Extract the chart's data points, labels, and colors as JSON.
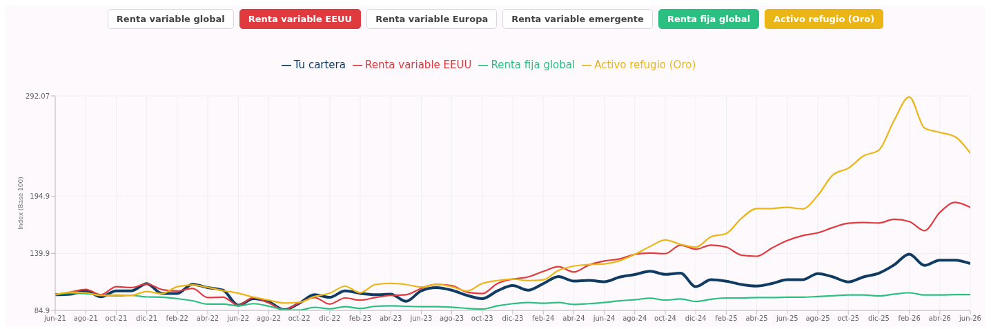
{
  "chart_data": {
    "type": "line",
    "ylabel": "Index (Base 100)",
    "annotations": [
      "Renta variable global",
      "Renta variable EEUU",
      "Renta variable Europa",
      "Renta variable emergente",
      "Renta fija global",
      "Activo refugio (Oro)"
    ],
    "categories": [
      "jun-21",
      null,
      "ago-21",
      null,
      "oct-21",
      null,
      "dic-21",
      null,
      "feb-22",
      null,
      "abr-22",
      null,
      "jun-22",
      null,
      "ago-22",
      null,
      "oct-22",
      null,
      "dic-22",
      null,
      "feb-23",
      null,
      "abr-23",
      null,
      "jun-23",
      null,
      "ago-23",
      null,
      "oct-23",
      null,
      "dic-23",
      null,
      "feb-24",
      null,
      "abr-24",
      null,
      "jun-24",
      null,
      "ago-24",
      null,
      "oct-24",
      null,
      "dic-24",
      null,
      "feb-25",
      null,
      "abr-25",
      null,
      "jun-25",
      null,
      "ago-25",
      null,
      "oct-25",
      null,
      "dic-25",
      null,
      "feb-26",
      null,
      "abr-26",
      null,
      "jun-26"
    ],
    "series": [
      {
        "name": "Tu cartera",
        "color": "#103c63",
        "values": [
          100,
          100.6,
          103.8,
          98.1,
          103.8,
          103.8,
          110.7,
          101.3,
          101.3,
          110.1,
          106.9,
          104.4,
          89.9,
          96.2,
          93.1,
          85.5,
          91.8,
          100,
          97.5,
          103.8,
          101.3,
          100,
          100.6,
          93.7,
          103.8,
          106.9,
          104.4,
          99.4,
          96.2,
          103.8,
          108.8,
          104.4,
          110.7,
          117.6,
          113.2,
          113.9,
          112.6,
          117,
          119.5,
          122.7,
          119.7,
          120.8,
          107.8,
          114.5,
          113,
          109.9,
          108.4,
          110.9,
          114.5,
          114.5,
          120.4,
          117.2,
          112.4,
          117.2,
          120.8,
          128.8,
          139.2,
          128.3,
          133.4,
          133.4,
          130.2
        ]
      },
      {
        "name": "Renta variable EEUU",
        "color": "#e0393e",
        "values": [
          100,
          102.5,
          105.2,
          100,
          107.8,
          106.9,
          110.5,
          105,
          103.6,
          106.1,
          97.3,
          97.7,
          89.9,
          97.3,
          92,
          85.5,
          92,
          97.3,
          91,
          96.9,
          94.8,
          97.3,
          99.4,
          100,
          106.1,
          109.9,
          108.8,
          102.5,
          101.1,
          110.9,
          115.1,
          117.2,
          122.5,
          127.1,
          121.9,
          128.8,
          132.6,
          134.6,
          139,
          140.3,
          139.7,
          148,
          143.9,
          148,
          146,
          138.2,
          137.2,
          145.2,
          152.3,
          157.1,
          159.8,
          164.9,
          169.1,
          169.7,
          169.3,
          172.9,
          170.7,
          161.9,
          179.5,
          189.2,
          184.4
        ]
      },
      {
        "name": "Renta fija global",
        "color": "#2bbf82",
        "values": [
          100,
          101.5,
          101.1,
          99.4,
          99,
          99.4,
          97.9,
          97.7,
          96.2,
          94.2,
          91,
          91,
          89.3,
          91.4,
          88.9,
          85.7,
          85.1,
          87.9,
          86.4,
          88.5,
          86.8,
          88.9,
          89.3,
          88.9,
          88.5,
          88.5,
          88,
          86.8,
          86.2,
          89.3,
          91.4,
          92.5,
          91.8,
          92.5,
          90.6,
          91.4,
          92.5,
          94.2,
          95.2,
          96.7,
          94.8,
          96,
          93.5,
          95.6,
          96.9,
          96.9,
          97.3,
          97.3,
          97.7,
          97.7,
          98.3,
          99,
          99.8,
          99.8,
          98.8,
          100.6,
          101.9,
          99.8,
          99.8,
          100.2,
          100.2
        ]
      },
      {
        "name": "Activo refugio (Oro)",
        "color": "#ebb515",
        "values": [
          100,
          102.5,
          101.9,
          99.4,
          99.8,
          99.4,
          103.2,
          101.1,
          107.8,
          109.5,
          107.1,
          104,
          101.5,
          97.7,
          94.8,
          92,
          92.6,
          98.3,
          101.5,
          108.2,
          101.9,
          109.9,
          110.9,
          109.9,
          107.4,
          109.9,
          107.8,
          103.6,
          110.9,
          113.7,
          115.1,
          113.7,
          114.5,
          123.5,
          127.7,
          129.2,
          129.8,
          132.8,
          139,
          146.6,
          152.9,
          148.7,
          146,
          156,
          159.2,
          173.9,
          183.3,
          183.3,
          184.4,
          182.9,
          195.9,
          215.9,
          222.2,
          234.1,
          239.6,
          268.3,
          291,
          261,
          256.8,
          252.6,
          236.8
        ]
      }
    ],
    "ylim": [
      84.9,
      292.07
    ],
    "yticks": [
      84.9,
      139.9,
      194.9,
      292.07
    ],
    "grid": true,
    "legend": "top",
    "marker": "none",
    "line_style": "solid"
  }
}
